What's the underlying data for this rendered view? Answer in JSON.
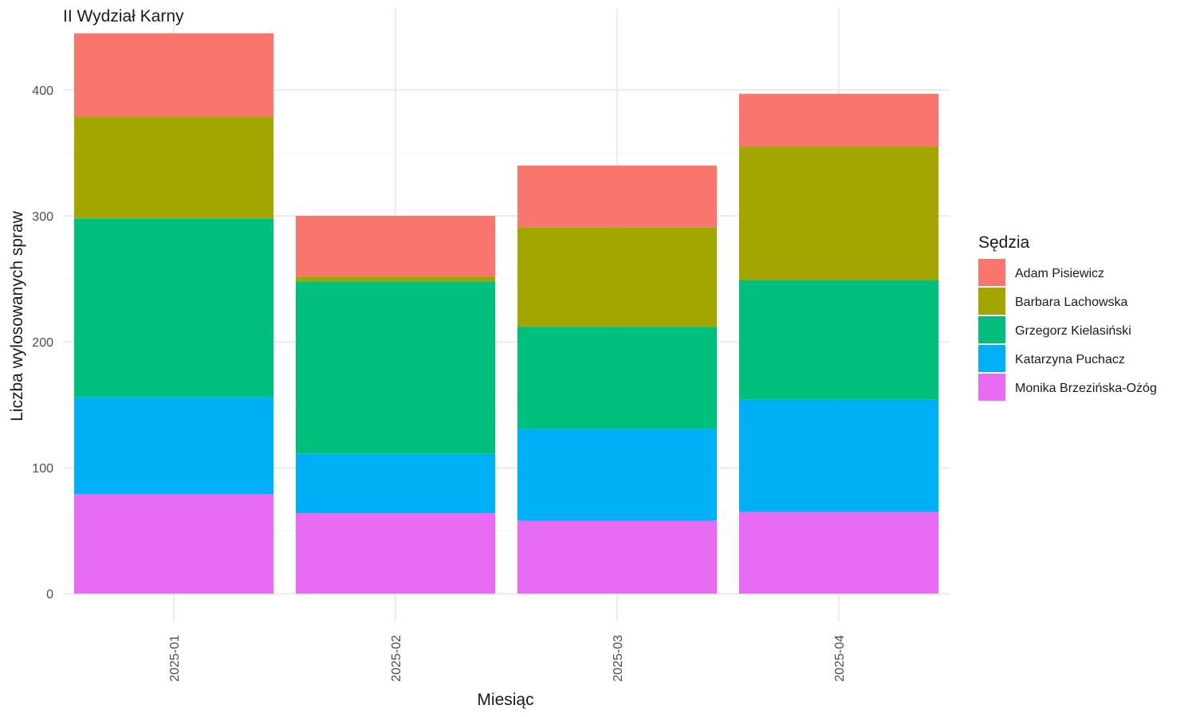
{
  "chart_data": {
    "type": "bar",
    "stacked": true,
    "title": "II Wydział Karny",
    "xlabel": "Miesiąc",
    "ylabel": "Liczba wylosowanych spraw",
    "categories": [
      "2025-01",
      "2025-02",
      "2025-03",
      "2025-04"
    ],
    "yticks": [
      0,
      100,
      200,
      300,
      400
    ],
    "ylim": [
      -22,
      467
    ],
    "grid": true,
    "legend": {
      "title": "Sędzia",
      "position": "right"
    },
    "series": [
      {
        "name": "Monika Brzezińska-Ożóg",
        "color": "#E76BF3",
        "values": [
          79,
          64,
          58,
          65
        ]
      },
      {
        "name": "Katarzyna Puchacz",
        "color": "#00B0F6",
        "values": [
          77,
          47,
          73,
          89
        ]
      },
      {
        "name": "Grzegorz Kielasiński",
        "color": "#00BF7D",
        "values": [
          142,
          137,
          81,
          95
        ]
      },
      {
        "name": "Barbara Lachowska",
        "color": "#A3A500",
        "values": [
          81,
          4,
          79,
          106
        ]
      },
      {
        "name": "Adam Pisiewicz",
        "color": "#F8766D",
        "values": [
          66,
          48,
          49,
          42
        ]
      }
    ],
    "legend_order": [
      "Adam Pisiewicz",
      "Barbara Lachowska",
      "Grzegorz Kielasiński",
      "Katarzyna Puchacz",
      "Monika Brzezińska-Ożóg"
    ]
  }
}
